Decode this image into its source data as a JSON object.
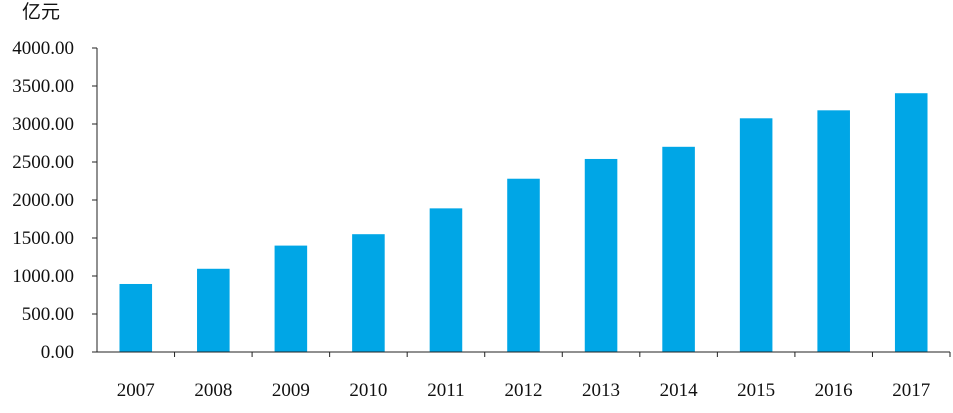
{
  "chart_data": {
    "type": "bar",
    "title": "",
    "xlabel": "",
    "ylabel": "亿元",
    "categories": [
      "2007",
      "2008",
      "2009",
      "2010",
      "2011",
      "2012",
      "2013",
      "2014",
      "2015",
      "2016",
      "2017"
    ],
    "values": [
      895,
      1095,
      1400,
      1550,
      1890,
      2280,
      2540,
      2700,
      3075,
      3180,
      3405
    ],
    "ylim": [
      0,
      4000
    ],
    "yticks": [
      "0.00",
      "500.00",
      "1000.00",
      "1500.00",
      "2000.00",
      "2500.00",
      "3000.00",
      "3500.00",
      "4000.00"
    ],
    "bar_color": "#00A6E6",
    "grid": false,
    "legend": "none"
  }
}
